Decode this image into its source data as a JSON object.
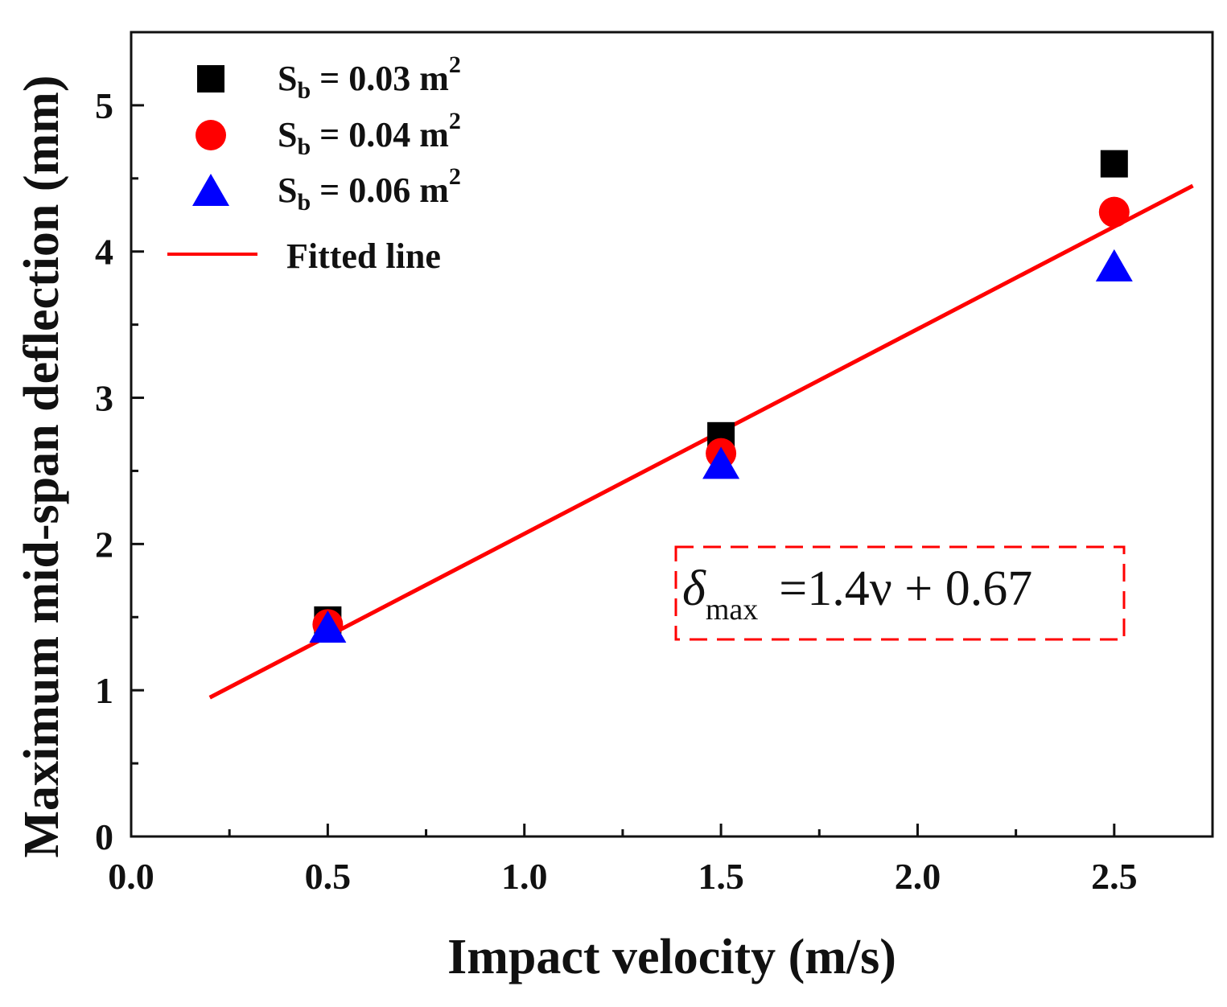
{
  "chart_data": {
    "type": "scatter",
    "title": "",
    "xlabel": "Impact velocity (m/s)",
    "ylabel": "Maximum mid-span deflection (mm)",
    "xlim": [
      0.0,
      2.75
    ],
    "ylim": [
      0,
      5.5
    ],
    "x_ticks": [
      "0.0",
      "0.5",
      "1.0",
      "1.5",
      "2.0",
      "2.5"
    ],
    "y_ticks": [
      "0",
      "1",
      "2",
      "3",
      "4",
      "5"
    ],
    "grid": false,
    "legend_position": "top-left",
    "series": [
      {
        "name": "Sb = 0.03 m2",
        "label_main": "S",
        "label_sub": "b",
        "label_rest": " = 0.03 m",
        "label_sup": "2",
        "marker": "square",
        "color": "#000000",
        "x": [
          0.5,
          1.5,
          2.5
        ],
        "y": [
          1.48,
          2.74,
          4.6
        ]
      },
      {
        "name": "Sb = 0.04 m2",
        "label_main": "S",
        "label_sub": "b",
        "label_rest": " = 0.04 m",
        "label_sup": "2",
        "marker": "circle",
        "color": "#ff0000",
        "x": [
          0.5,
          1.5,
          2.5
        ],
        "y": [
          1.45,
          2.62,
          4.27
        ]
      },
      {
        "name": "Sb = 0.06 m2",
        "label_main": "S",
        "label_sub": "b",
        "label_rest": " = 0.06 m",
        "label_sup": "2",
        "marker": "triangle",
        "color": "#0000ff",
        "x": [
          0.5,
          1.5,
          2.5
        ],
        "y": [
          1.43,
          2.55,
          3.9
        ]
      }
    ],
    "fit": {
      "name": "Fitted line",
      "label": "Fitted line",
      "color": "#ff0000",
      "slope": 1.4,
      "intercept": 0.67,
      "x_range": [
        0.2,
        2.7
      ]
    },
    "annotation": {
      "symbol": "δ",
      "sub": "max",
      "rhs": "=1.4ν + 0.67",
      "box_color": "#ff0000"
    }
  }
}
